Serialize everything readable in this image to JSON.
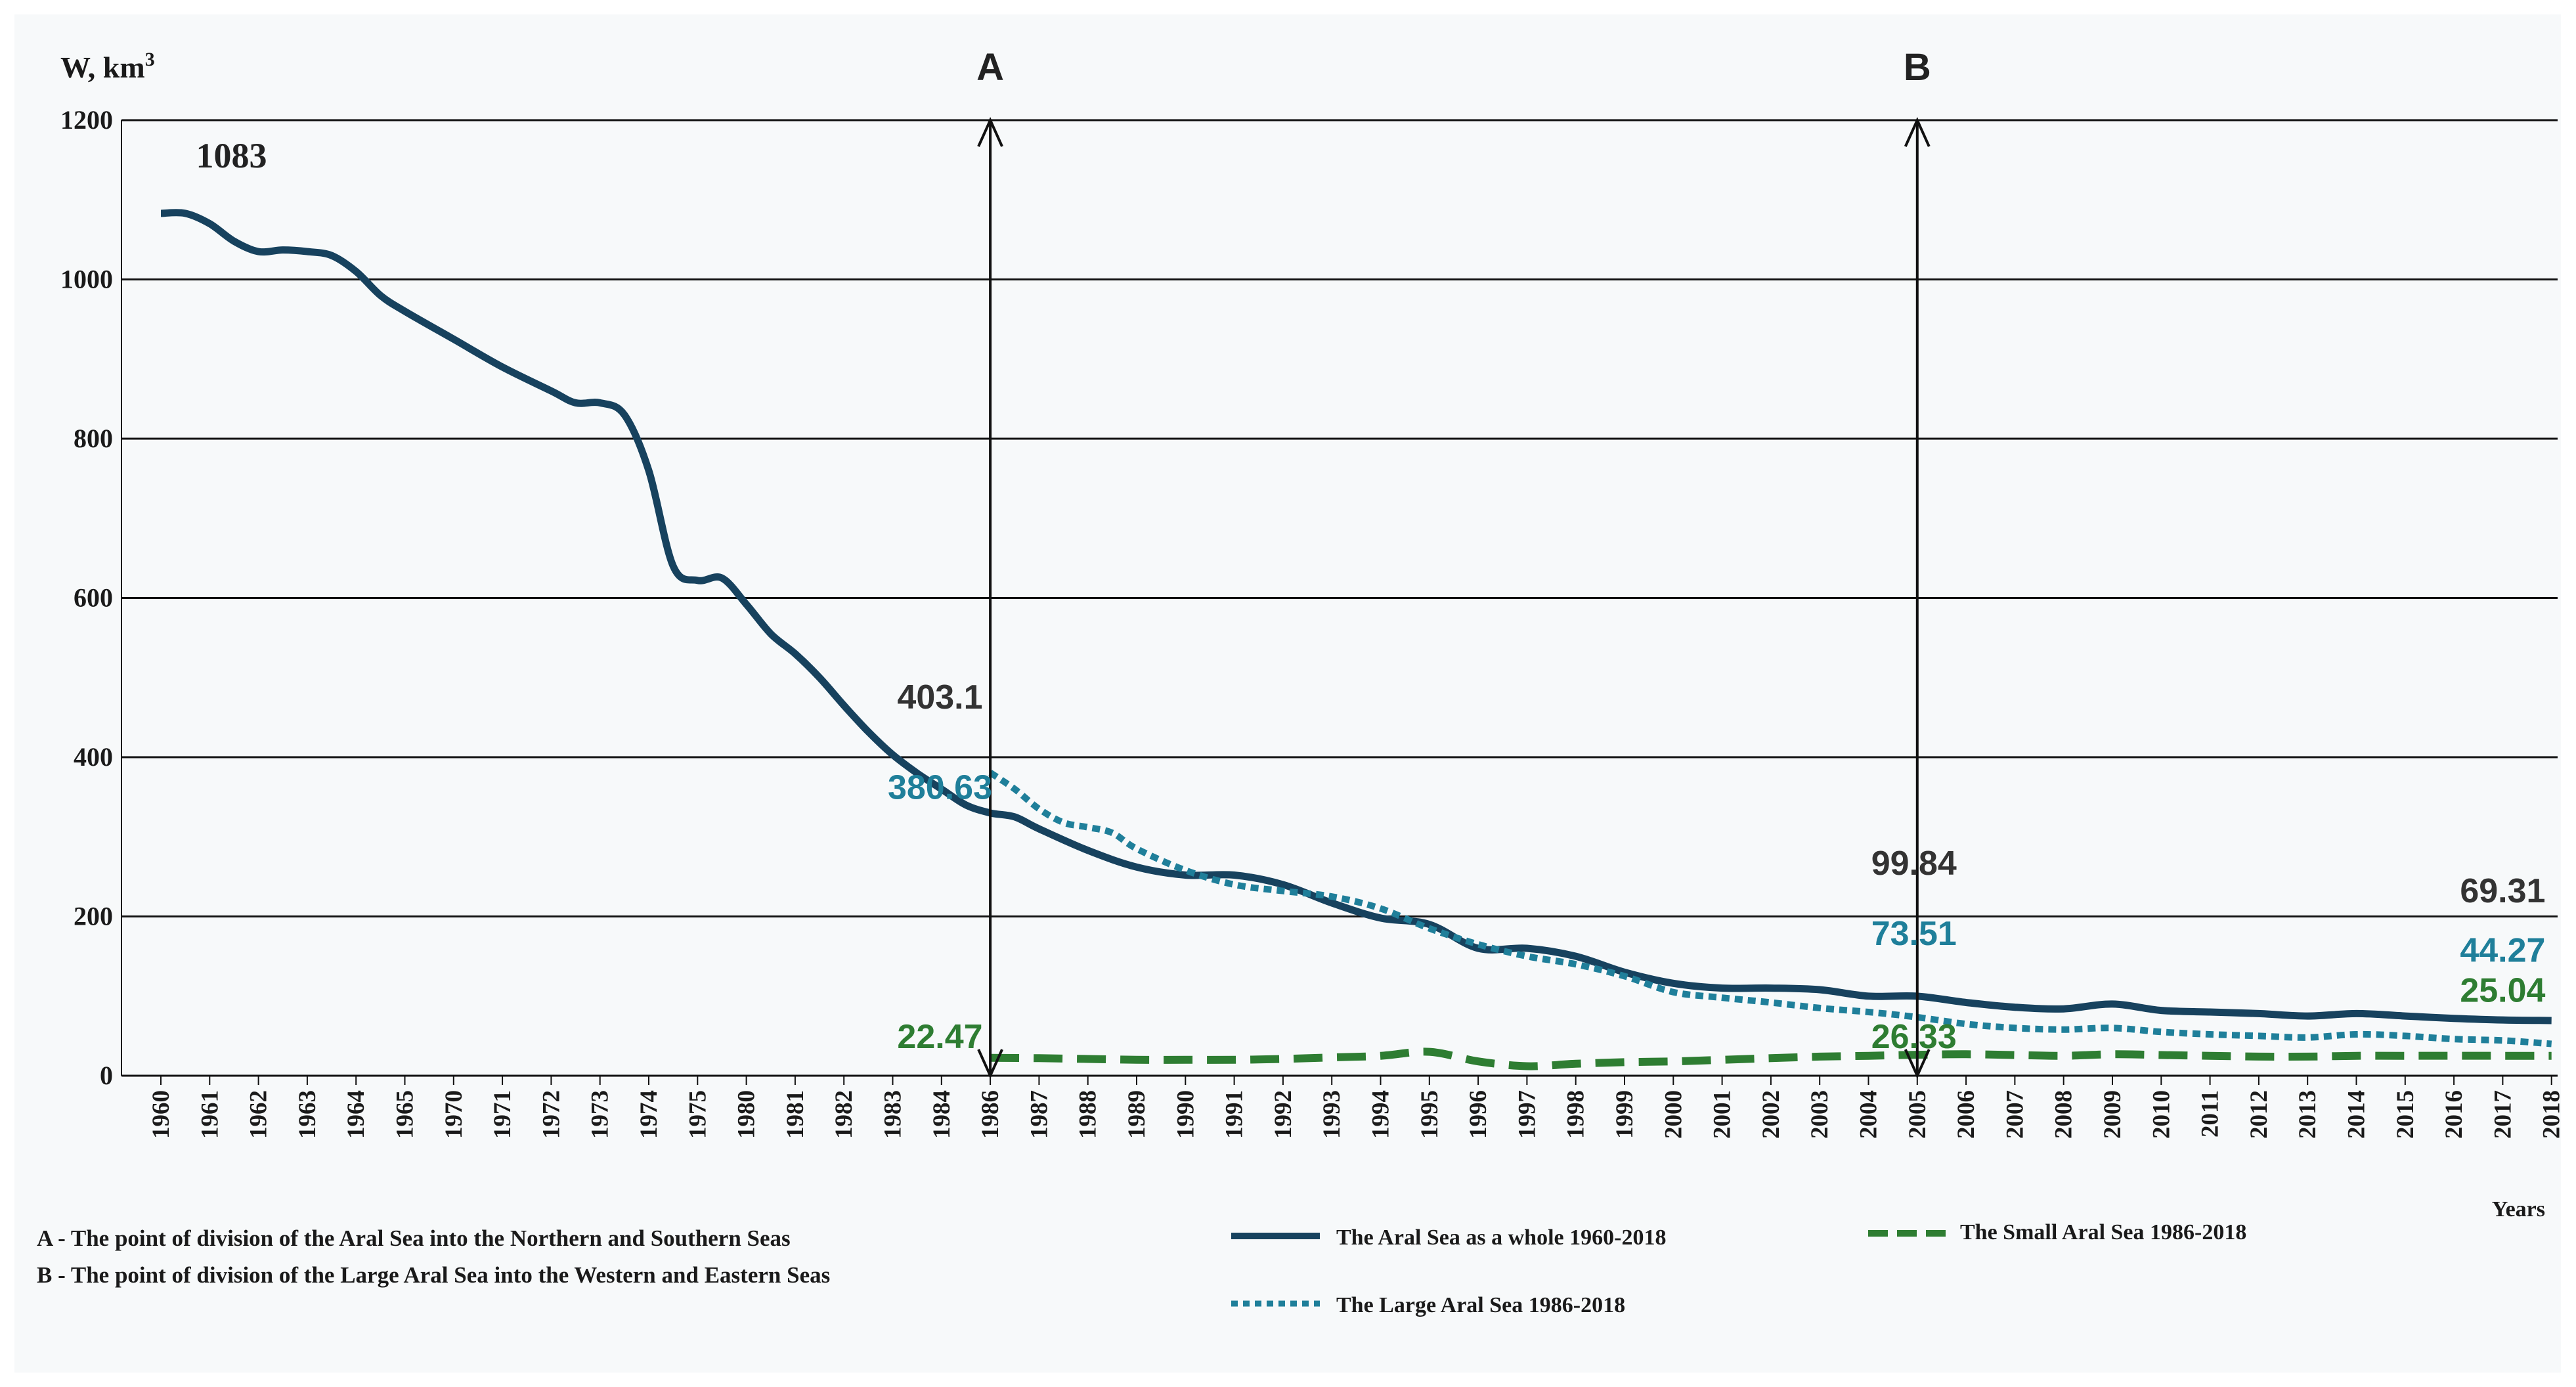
{
  "chart_data": {
    "type": "line",
    "ylabel": "W, km",
    "ylabel_sup": "3",
    "xlabel": "Years",
    "ylim": [
      0,
      1200
    ],
    "yticks": [
      "0",
      "200",
      "400",
      "600",
      "800",
      "1000",
      "1200"
    ],
    "grid": "horizontal",
    "categories": [
      "1960",
      "1961",
      "1962",
      "1963",
      "1964",
      "1965",
      "1970",
      "1971",
      "1972",
      "1973",
      "1974",
      "1975",
      "1980",
      "1981",
      "1982",
      "1983",
      "1984",
      "1986",
      "1987",
      "1988",
      "1989",
      "1990",
      "1991",
      "1992",
      "1993",
      "1994",
      "1995",
      "1996",
      "1997",
      "1998",
      "1999",
      "2000",
      "2001",
      "2002",
      "2003",
      "2004",
      "2005",
      "2006",
      "2007",
      "2008",
      "2009",
      "2010",
      "2011",
      "2012",
      "2013",
      "2014",
      "2015",
      "2016",
      "2017",
      "2018"
    ],
    "series": [
      {
        "name": "The Aral Sea as a whole 1960-2018",
        "color": "#17425e",
        "style": "solid",
        "points": [
          [
            0,
            1083
          ],
          [
            0.5,
            1083
          ],
          [
            1,
            1070
          ],
          [
            1.5,
            1048
          ],
          [
            2,
            1035
          ],
          [
            2.5,
            1037
          ],
          [
            3,
            1035
          ],
          [
            3.5,
            1030
          ],
          [
            4,
            1010
          ],
          [
            4.5,
            980
          ],
          [
            5,
            960
          ],
          [
            6,
            925
          ],
          [
            7,
            890
          ],
          [
            8,
            860
          ],
          [
            8.5,
            845
          ],
          [
            9,
            845
          ],
          [
            9.5,
            830
          ],
          [
            10,
            760
          ],
          [
            10.5,
            640
          ],
          [
            11,
            622
          ],
          [
            11.5,
            625
          ],
          [
            12,
            592
          ],
          [
            12.5,
            555
          ],
          [
            13,
            530
          ],
          [
            13.5,
            500
          ],
          [
            14,
            465
          ],
          [
            14.5,
            432
          ],
          [
            15,
            403.1
          ],
          [
            15.5,
            380
          ],
          [
            16,
            360
          ],
          [
            16.5,
            340
          ],
          [
            17,
            330
          ],
          [
            17.5,
            325
          ],
          [
            18,
            310
          ],
          [
            19,
            283
          ],
          [
            20,
            262
          ],
          [
            21,
            252
          ],
          [
            22,
            252
          ],
          [
            23,
            240
          ],
          [
            24,
            217
          ],
          [
            25,
            198
          ],
          [
            26,
            190
          ],
          [
            27,
            160
          ],
          [
            28,
            160
          ],
          [
            29,
            150
          ],
          [
            30,
            130
          ],
          [
            31,
            116
          ],
          [
            32,
            110
          ],
          [
            33,
            110
          ],
          [
            34,
            108
          ],
          [
            35,
            100
          ],
          [
            36,
            99.84
          ],
          [
            37,
            92
          ],
          [
            38,
            86
          ],
          [
            39,
            84
          ],
          [
            40,
            90
          ],
          [
            41,
            82
          ],
          [
            42,
            80
          ],
          [
            43,
            78
          ],
          [
            44,
            75
          ],
          [
            45,
            78
          ],
          [
            46,
            75
          ],
          [
            47,
            72
          ],
          [
            48,
            70
          ],
          [
            49,
            69.31
          ]
        ]
      },
      {
        "name": "The Large Aral Sea 1986-2018",
        "color": "#1f7f9a",
        "style": "dotted",
        "points": [
          [
            17,
            380.63
          ],
          [
            17.5,
            360
          ],
          [
            18,
            335
          ],
          [
            18.5,
            318
          ],
          [
            19,
            312
          ],
          [
            19.5,
            305
          ],
          [
            20,
            285
          ],
          [
            21,
            258
          ],
          [
            22,
            240
          ],
          [
            23,
            232
          ],
          [
            24,
            225
          ],
          [
            25,
            210
          ],
          [
            26,
            185
          ],
          [
            27,
            165
          ],
          [
            28,
            150
          ],
          [
            29,
            140
          ],
          [
            30,
            125
          ],
          [
            31,
            105
          ],
          [
            32,
            98
          ],
          [
            33,
            92
          ],
          [
            34,
            85
          ],
          [
            35,
            80
          ],
          [
            36,
            73.51
          ],
          [
            37,
            65
          ],
          [
            38,
            60
          ],
          [
            39,
            58
          ],
          [
            40,
            60
          ],
          [
            41,
            55
          ],
          [
            42,
            52
          ],
          [
            43,
            50
          ],
          [
            44,
            48
          ],
          [
            45,
            52
          ],
          [
            46,
            50
          ],
          [
            47,
            46
          ],
          [
            48,
            44.27
          ],
          [
            49,
            40
          ]
        ]
      },
      {
        "name": "The Small Aral Sea 1986-2018",
        "color": "#2e7d32",
        "style": "dashed",
        "points": [
          [
            17,
            22.47
          ],
          [
            18,
            22
          ],
          [
            19,
            21
          ],
          [
            20,
            20
          ],
          [
            21,
            20
          ],
          [
            22,
            20
          ],
          [
            23,
            21
          ],
          [
            24,
            23
          ],
          [
            25,
            25
          ],
          [
            26,
            30
          ],
          [
            27,
            18
          ],
          [
            28,
            12
          ],
          [
            29,
            15
          ],
          [
            30,
            17
          ],
          [
            31,
            18
          ],
          [
            32,
            20
          ],
          [
            33,
            22
          ],
          [
            34,
            24
          ],
          [
            35,
            25
          ],
          [
            36,
            26.33
          ],
          [
            37,
            27
          ],
          [
            38,
            26
          ],
          [
            39,
            25
          ],
          [
            40,
            27
          ],
          [
            41,
            26
          ],
          [
            42,
            25
          ],
          [
            43,
            24
          ],
          [
            44,
            24
          ],
          [
            45,
            25
          ],
          [
            46,
            25
          ],
          [
            47,
            25.04
          ],
          [
            48,
            25
          ],
          [
            49,
            25
          ]
        ]
      }
    ],
    "markers": [
      {
        "label": "A",
        "x": 17
      },
      {
        "label": "B",
        "x": 36
      }
    ],
    "annotations": [
      {
        "text": "1083",
        "x": 0.8,
        "y": 1083,
        "color": "#222222",
        "kind": "first"
      },
      {
        "text": "403.1",
        "x": 15,
        "y": 403.1,
        "color": "#333333"
      },
      {
        "text": "380.63",
        "x": 15,
        "y": 380.63,
        "color": "#1f7f9a"
      },
      {
        "text": "22.47",
        "x": 15,
        "y": 22.47,
        "color": "#2e7d32"
      },
      {
        "text": "99.84",
        "x": 36,
        "y": 99.84,
        "color": "#333333"
      },
      {
        "text": "73.51",
        "x": 36,
        "y": 73.51,
        "color": "#1f7f9a"
      },
      {
        "text": "26.33",
        "x": 36,
        "y": 26.33,
        "color": "#2e7d32"
      },
      {
        "text": "69.31",
        "x": 48,
        "y": 69.31,
        "color": "#333333"
      },
      {
        "text": "44.27",
        "x": 48,
        "y": 44.27,
        "color": "#1f7f9a"
      },
      {
        "text": "25.04",
        "x": 48,
        "y": 25.04,
        "color": "#2e7d32"
      }
    ],
    "legend": {
      "placement": "bottom",
      "notes": [
        "A - The point of division of the Aral Sea into the Northern and Southern Seas",
        "B - The point of division of the Large Aral Sea into the Western and Eastern Seas"
      ]
    }
  }
}
